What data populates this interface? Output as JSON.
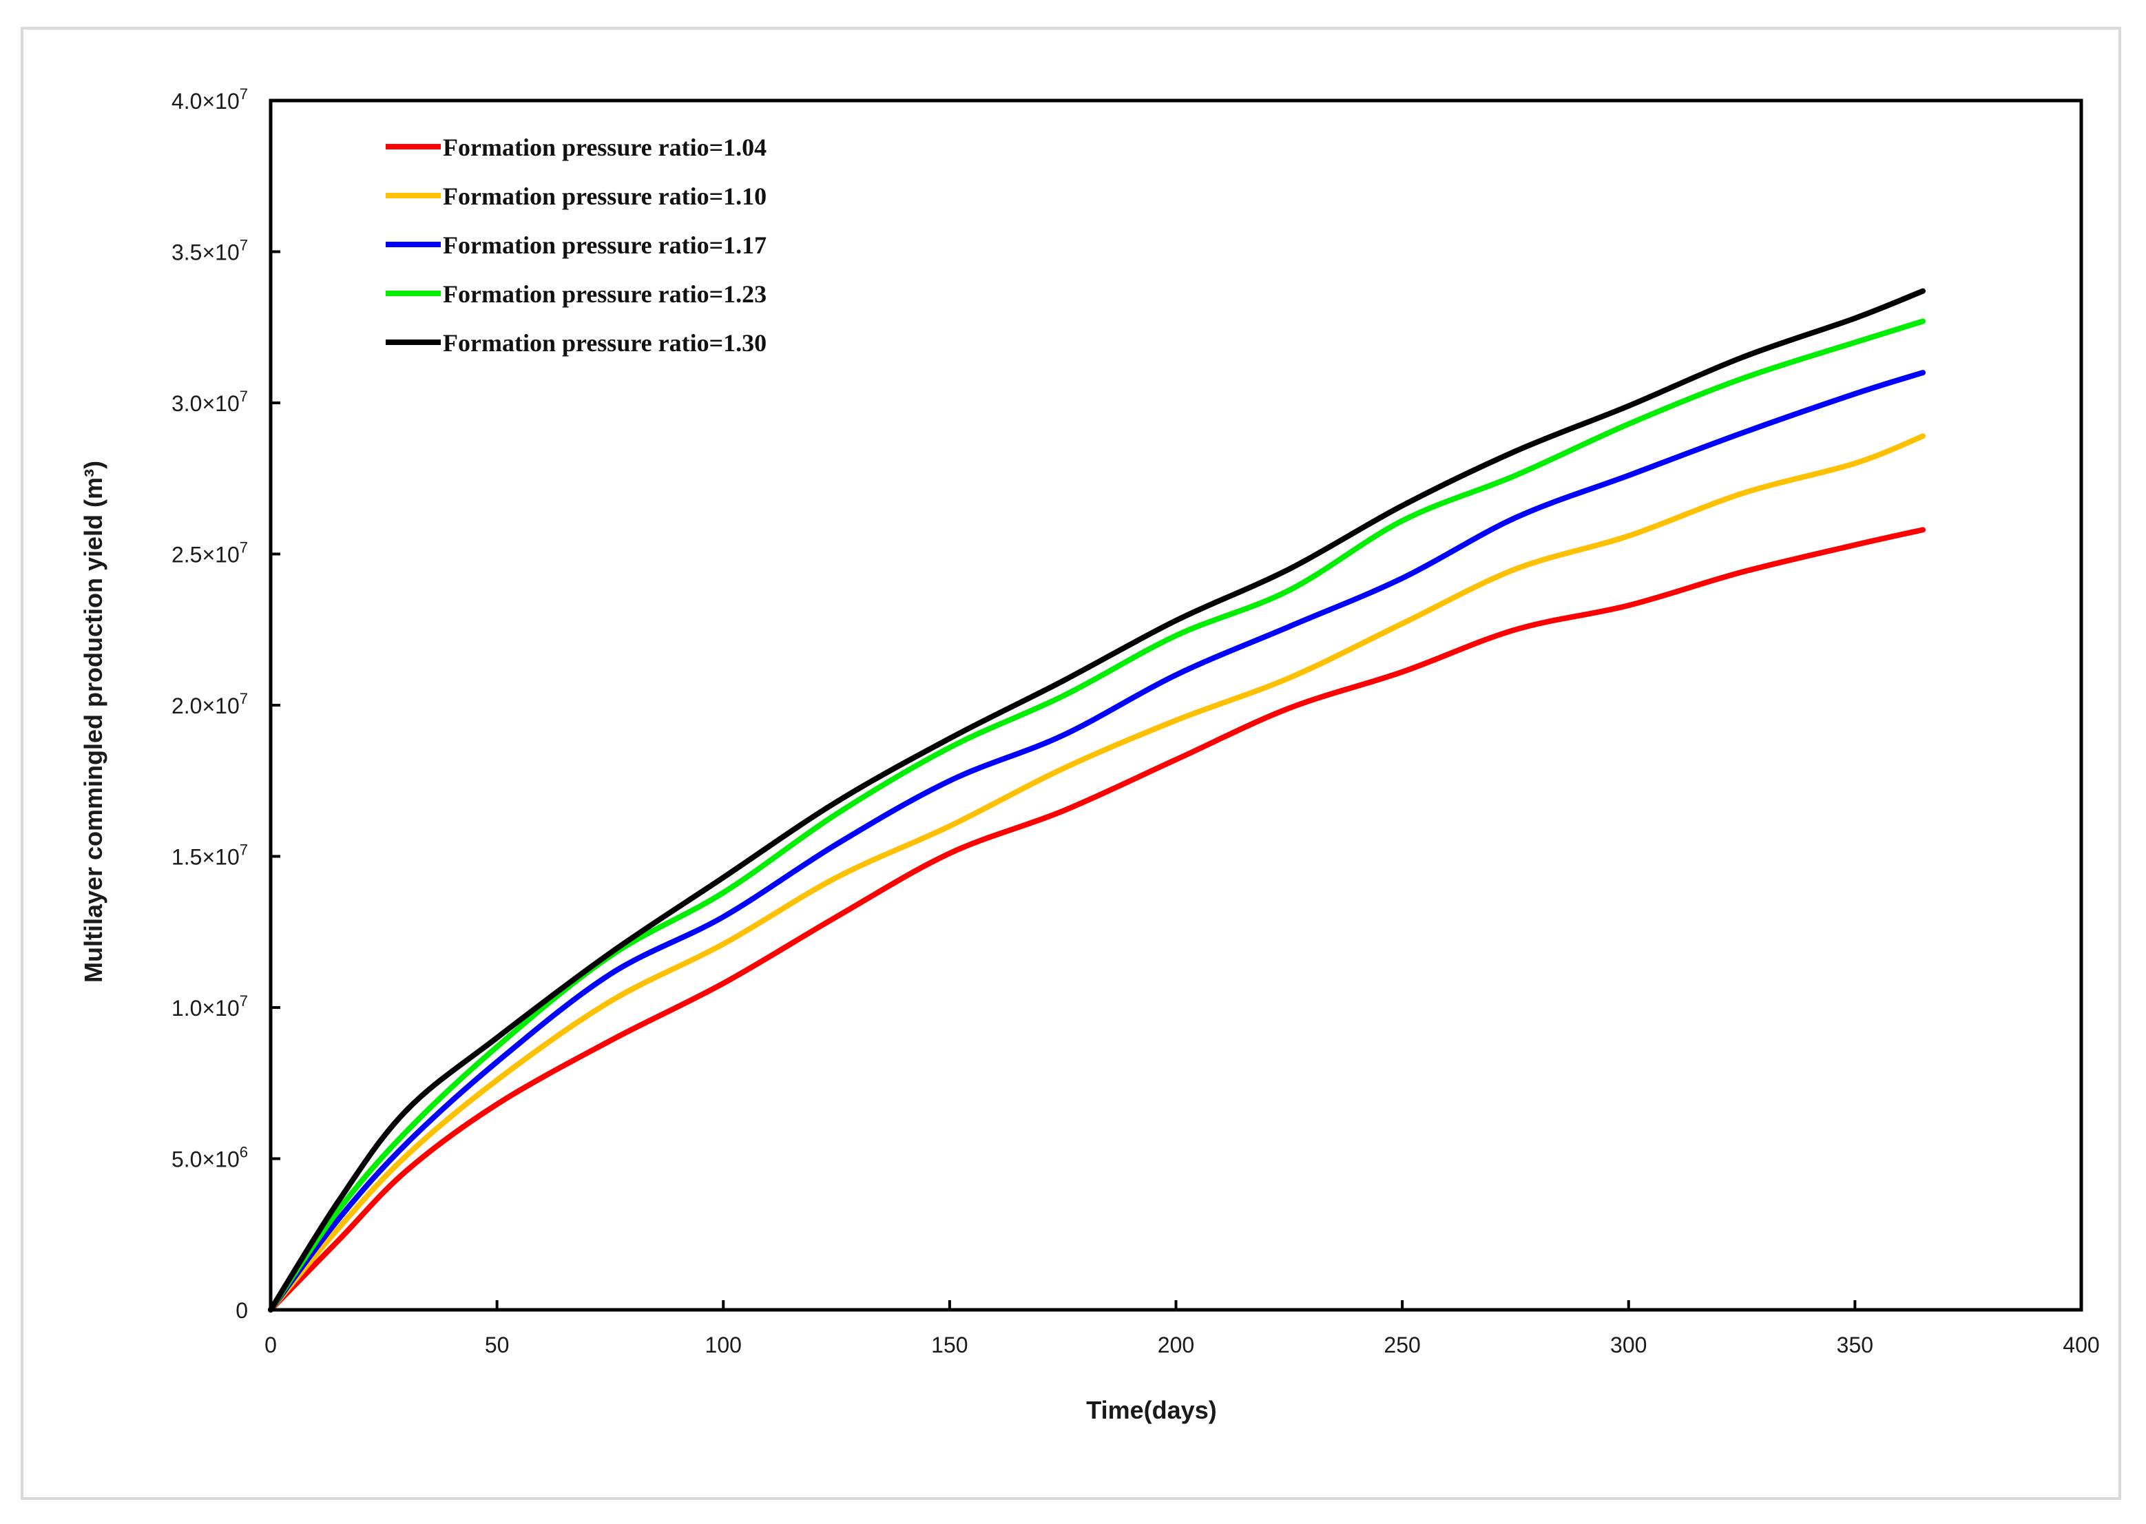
{
  "chart_data": {
    "type": "line",
    "title": "",
    "xlabel": "Time(days)",
    "ylabel": "Multilayer commingled production yield (m³)",
    "xlim": [
      0,
      400
    ],
    "ylim": [
      0,
      40000000
    ],
    "x_ticks": [
      0,
      50,
      100,
      150,
      200,
      250,
      300,
      350,
      400
    ],
    "x_tick_labels": [
      "0",
      "50",
      "100",
      "150",
      "200",
      "250",
      "300",
      "350",
      "400"
    ],
    "y_ticks": [
      0,
      5000000,
      10000000,
      15000000,
      20000000,
      25000000,
      30000000,
      35000000,
      40000000
    ],
    "y_tick_labels": [
      {
        "mant": "0",
        "exp": ""
      },
      {
        "mant": "5.0×10",
        "exp": "6"
      },
      {
        "mant": "1.0×10",
        "exp": "7"
      },
      {
        "mant": "1.5×10",
        "exp": "7"
      },
      {
        "mant": "2.0×10",
        "exp": "7"
      },
      {
        "mant": "2.5×10",
        "exp": "7"
      },
      {
        "mant": "3.0×10",
        "exp": "7"
      },
      {
        "mant": "3.5×10",
        "exp": "7"
      },
      {
        "mant": "4.0×10",
        "exp": "7"
      }
    ],
    "grid": false,
    "legend_position": "upper-left",
    "x": [
      0,
      15,
      30,
      50,
      75,
      100,
      125,
      150,
      175,
      200,
      225,
      250,
      275,
      300,
      325,
      350,
      365
    ],
    "series": [
      {
        "name": "Formation pressure ratio=1.04",
        "color": "#ff0000",
        "values": [
          0,
          2300000.0,
          4600000.0,
          6800000.0,
          8900000.0,
          10800000.0,
          13000000.0,
          15100000.0,
          16500000.0,
          18200000.0,
          19900000.0,
          21100000.0,
          22500000.0,
          23300000.0,
          24400000.0,
          25300000.0,
          25800000.0
        ]
      },
      {
        "name": "Formation pressure ratio=1.10",
        "color": "#ffc000",
        "values": [
          0,
          2700000.0,
          5100000.0,
          7600000.0,
          10200000.0,
          12100000.0,
          14300000.0,
          16000000.0,
          17900000.0,
          19500000.0,
          20900000.0,
          22700000.0,
          24500000.0,
          25600000.0,
          27000000.0,
          28000000.0,
          28900000.0
        ]
      },
      {
        "name": "Formation pressure ratio=1.17",
        "color": "#0000ff",
        "values": [
          0,
          3000000.0,
          5500000.0,
          8200000.0,
          11100000.0,
          13000000.0,
          15400000.0,
          17500000.0,
          19000000.0,
          21000000.0,
          22600000.0,
          24200000.0,
          26200000.0,
          27600000.0,
          29000000.0,
          30300000.0,
          31000000.0
        ]
      },
      {
        "name": "Formation pressure ratio=1.23",
        "color": "#00ee00",
        "values": [
          0,
          3300000.0,
          5900000.0,
          8700000.0,
          11700000.0,
          13800000.0,
          16400000.0,
          18600000.0,
          20300000.0,
          22300000.0,
          23800000.0,
          26100000.0,
          27600000.0,
          29300000.0,
          30800000.0,
          32000000.0,
          32700000.0
        ]
      },
      {
        "name": "Formation pressure ratio=1.30",
        "color": "#000000",
        "values": [
          0,
          3600000.0,
          6600000.0,
          9000000.0,
          11800000.0,
          14300000.0,
          16800000.0,
          18900000.0,
          20800000.0,
          22800000.0,
          24500000.0,
          26600000.0,
          28400000.0,
          29900000.0,
          31500000.0,
          32800000.0,
          33700000.0
        ]
      }
    ]
  }
}
